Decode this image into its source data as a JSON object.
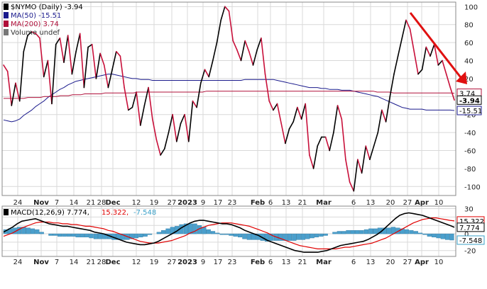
{
  "chart_data": [
    {
      "type": "line",
      "title": "$NYMO (Daily) -3.94",
      "ylim": [
        -110,
        105
      ],
      "y_ticks": [
        100,
        80,
        60,
        40,
        20,
        0,
        -20,
        -40,
        -60,
        -80,
        -100
      ],
      "grid": true,
      "legend": "top-left",
      "legend_entries": [
        {
          "label": "$NYMO (Daily) -3.94",
          "color": "#000000"
        },
        {
          "label": "MA(50) -15.51",
          "color": "#1a1a8c"
        },
        {
          "label": "MA(200) 3.74",
          "color": "#b0103a"
        },
        {
          "label": "Volume undef",
          "color": "#777777"
        }
      ],
      "price_tags": [
        {
          "text": "3.74",
          "value": 3.74,
          "border": "#b0103a"
        },
        {
          "text": "-3.94",
          "value": -3.94,
          "border": "#000000",
          "bold": true
        },
        {
          "text": "-15.51",
          "value": -15.51,
          "border": "#1a1a8c"
        }
      ],
      "annotation": {
        "type": "arrow",
        "color": "#e01010",
        "from": [
          578,
          18
        ],
        "to": [
          655,
          117
        ]
      },
      "series": [
        {
          "name": "$NYMO",
          "values": [
            35,
            28,
            -10,
            15,
            -5,
            50,
            68,
            72,
            70,
            65,
            22,
            40,
            -8,
            58,
            65,
            38,
            68,
            25,
            50,
            70,
            10,
            55,
            58,
            20,
            48,
            35,
            10,
            30,
            50,
            45,
            10,
            -15,
            -12,
            5,
            -32,
            -10,
            10,
            -25,
            -48,
            -65,
            -58,
            -40,
            -20,
            -50,
            -30,
            -20,
            -50,
            -5,
            -12,
            15,
            30,
            22,
            40,
            60,
            85,
            100,
            95,
            62,
            52,
            40,
            62,
            50,
            35,
            52,
            65,
            25,
            -5,
            -15,
            -8,
            -30,
            -52,
            -36,
            -28,
            -12,
            -25,
            -8,
            -65,
            -80,
            -55,
            -45,
            -45,
            -60,
            -40,
            -10,
            -25,
            -70,
            -95,
            -105,
            -70,
            -85,
            -55,
            -70,
            -55,
            -40,
            -15,
            -28,
            0,
            25,
            45,
            65,
            85,
            75,
            50,
            25,
            30,
            55,
            45,
            58,
            35,
            40,
            25,
            10,
            -3.94
          ]
        },
        {
          "name": "MA(50)",
          "values": [
            -26,
            -27,
            -28,
            -27,
            -25,
            -21,
            -18,
            -15,
            -11,
            -8,
            -5,
            -1,
            2,
            5,
            8,
            10,
            13,
            15,
            17,
            18,
            19,
            20,
            21,
            22,
            23,
            24,
            25,
            25,
            24,
            23,
            22,
            21,
            20,
            20,
            19,
            19,
            19,
            18,
            18,
            18,
            18,
            18,
            18,
            18,
            18,
            18,
            18,
            18,
            18,
            18,
            18,
            18,
            18,
            18,
            18,
            18,
            18,
            18,
            18,
            18,
            19,
            19,
            19,
            19,
            19,
            19,
            19,
            19,
            18,
            17,
            16,
            15,
            14,
            13,
            12,
            11,
            10,
            10,
            10,
            9,
            9,
            8,
            8,
            8,
            7,
            7,
            7,
            6,
            5,
            4,
            3,
            2,
            1,
            0,
            -2,
            -4,
            -6,
            -8,
            -10,
            -12,
            -13,
            -14,
            -14,
            -14,
            -14,
            -15,
            -15,
            -15,
            -15,
            -15,
            -15,
            -15,
            -15.51
          ]
        },
        {
          "name": "MA(200)",
          "values": [
            -2,
            -2,
            -2,
            -2,
            -2,
            -2,
            -1,
            -1,
            -1,
            -1,
            0,
            0,
            0,
            0,
            1,
            1,
            1,
            2,
            2,
            2,
            3,
            3,
            3,
            3,
            3,
            4,
            4,
            4,
            4,
            4,
            4,
            4,
            4,
            5,
            5,
            5,
            5,
            5,
            5,
            5,
            5,
            5,
            5,
            5,
            5,
            5,
            5,
            5,
            5,
            5,
            6,
            6,
            6,
            6,
            6,
            6,
            6,
            6,
            6,
            6,
            6,
            6,
            6,
            6,
            6,
            6,
            6,
            6,
            6,
            6,
            6,
            6,
            6,
            6,
            6,
            6,
            6,
            6,
            6,
            6,
            6,
            6,
            6,
            6,
            6,
            6,
            6,
            6,
            6,
            6,
            6,
            6,
            5,
            5,
            5,
            5,
            4,
            4,
            4,
            4,
            4,
            4,
            4,
            4,
            4,
            4,
            4,
            4,
            4,
            4,
            4,
            3.74
          ]
        }
      ],
      "x_tick_labels": [
        "24",
        "Nov",
        "7",
        "14",
        "21",
        "28",
        "Dec",
        "12",
        "19",
        "27",
        "2023",
        "9",
        "17",
        "23",
        "Feb",
        "6",
        "13",
        "21",
        "Mar",
        "6",
        "13",
        "20",
        "27",
        "Apr",
        "10",
        "17"
      ]
    },
    {
      "type": "bar",
      "title": "MACD(12,26,9) 7.774, 15.322, -7.548",
      "legend_entries": [
        {
          "label": "MACD(12,26,9) 7.774,",
          "color": "#000000"
        },
        {
          "label": "15.322,",
          "color": "#e00000"
        },
        {
          "label": "-7.548",
          "color": "#3aa0c8"
        }
      ],
      "ylim": [
        -27,
        33
      ],
      "y_ticks": [
        30,
        20,
        10,
        0,
        -10,
        -20
      ],
      "price_tags": [
        {
          "text": "15.322",
          "value": 15.322,
          "border": "#e00000"
        },
        {
          "text": "7.774",
          "value": 7.774,
          "border": "#000000"
        },
        {
          "text": "-7.548",
          "value": -7.548,
          "border": "#3aa0c8"
        }
      ],
      "series": [
        {
          "name": "MACD",
          "values": [
            2,
            5,
            8,
            12,
            15,
            16,
            17,
            18,
            16,
            14,
            12,
            11,
            10,
            9,
            9,
            8,
            7,
            6,
            5,
            4,
            2,
            1,
            0,
            -2,
            -4,
            -6,
            -8,
            -10,
            -11,
            -12,
            -13,
            -13,
            -12,
            -11,
            -9,
            -6,
            -3,
            0,
            3,
            7,
            10,
            13,
            15,
            16,
            16,
            15,
            14,
            13,
            12,
            12,
            11,
            9,
            7,
            4,
            2,
            0,
            -2,
            -5,
            -8,
            -10,
            -12,
            -14,
            -16,
            -18,
            -20,
            -21,
            -22,
            -22,
            -22,
            -22,
            -21,
            -20,
            -18,
            -16,
            -14,
            -13,
            -12,
            -11,
            -10,
            -9,
            -7,
            -4,
            -1,
            3,
            8,
            13,
            18,
            22,
            24,
            25,
            24,
            23,
            22,
            20,
            18,
            16,
            14,
            12,
            10,
            7.774
          ]
        },
        {
          "name": "Signal",
          "values": [
            -3,
            -1,
            1,
            4,
            7,
            9,
            11,
            13,
            14,
            14,
            14,
            13,
            13,
            12,
            12,
            11,
            11,
            10,
            9,
            9,
            8,
            7,
            6,
            4,
            3,
            1,
            -1,
            -3,
            -5,
            -7,
            -9,
            -10,
            -11,
            -11,
            -11,
            -10,
            -9,
            -8,
            -6,
            -4,
            -2,
            1,
            3,
            6,
            8,
            10,
            11,
            12,
            13,
            13,
            13,
            12,
            11,
            10,
            9,
            7,
            5,
            3,
            1,
            -2,
            -4,
            -6,
            -8,
            -10,
            -12,
            -14,
            -15,
            -16,
            -17,
            -18,
            -18,
            -18,
            -18,
            -18,
            -17,
            -16,
            -16,
            -15,
            -14,
            -13,
            -12,
            -11,
            -9,
            -7,
            -5,
            -2,
            1,
            4,
            7,
            10,
            13,
            15,
            17,
            18,
            19,
            19,
            18,
            17,
            16,
            15.322
          ]
        },
        {
          "name": "Histogram",
          "values": [
            5,
            6,
            7,
            8,
            8,
            7,
            6,
            5,
            2,
            0,
            -2,
            -2,
            -3,
            -3,
            -3,
            -3,
            -4,
            -4,
            -4,
            -5,
            -6,
            -6,
            -6,
            -6,
            -7,
            -7,
            -7,
            -7,
            -6,
            -5,
            -4,
            -3,
            -1,
            0,
            2,
            4,
            6,
            8,
            9,
            11,
            12,
            12,
            12,
            10,
            8,
            5,
            3,
            1,
            -1,
            -1,
            -2,
            -3,
            -4,
            -6,
            -7,
            -7,
            -7,
            -8,
            -9,
            -8,
            -8,
            -8,
            -8,
            -8,
            -8,
            -7,
            -7,
            -6,
            -5,
            -4,
            -3,
            -2,
            0,
            2,
            3,
            3,
            4,
            4,
            4,
            4,
            5,
            6,
            6,
            7,
            7,
            7,
            8,
            7,
            6,
            5,
            4,
            3,
            1,
            -1,
            -3,
            -4,
            -5,
            -6,
            -7,
            -7.548
          ]
        }
      ],
      "x_tick_labels": [
        "24",
        "Nov",
        "7",
        "14",
        "21",
        "28",
        "Dec",
        "12",
        "19",
        "27",
        "2023",
        "9",
        "17",
        "23",
        "Feb",
        "6",
        "13",
        "21",
        "Mar",
        "6",
        "13",
        "20",
        "27",
        "Apr",
        "10",
        "17"
      ]
    }
  ]
}
